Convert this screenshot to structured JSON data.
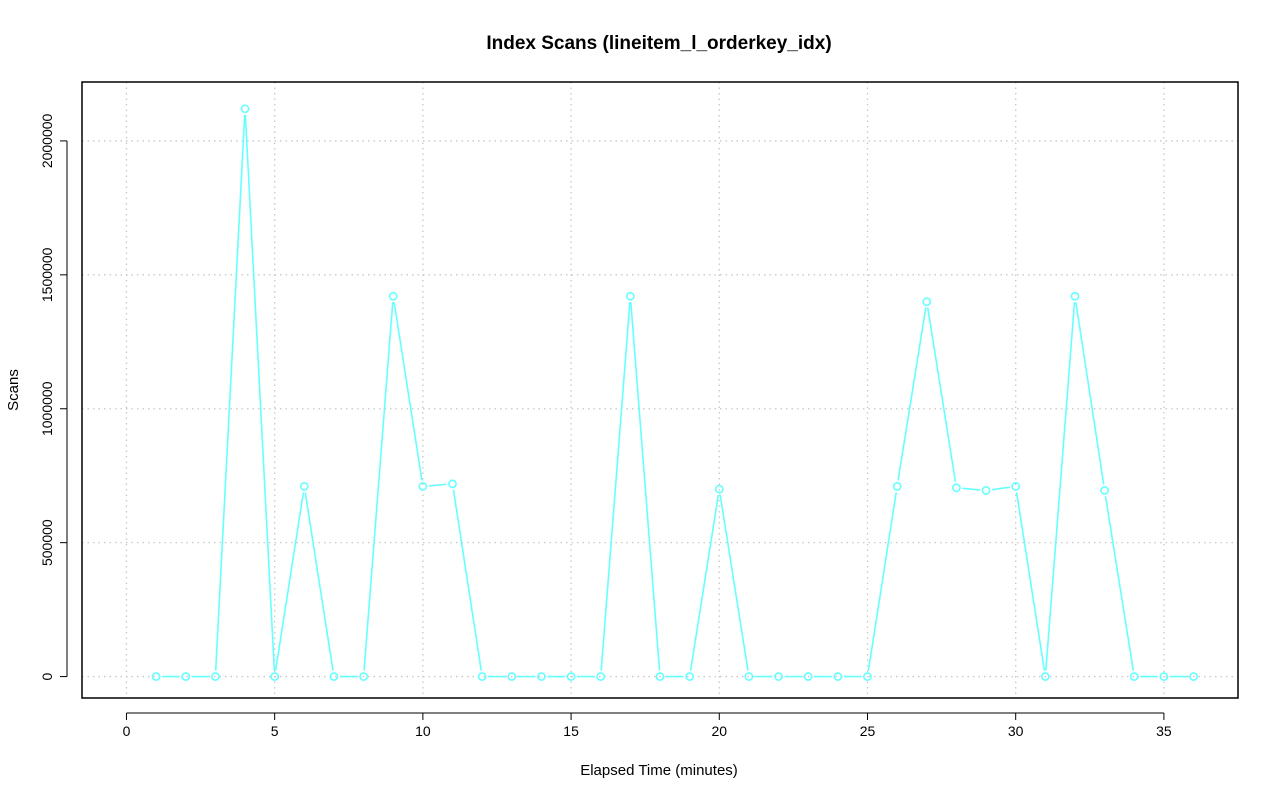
{
  "chart_data": {
    "type": "line",
    "title": "Index Scans (lineitem_l_orderkey_idx)",
    "xlabel": "Elapsed Time (minutes)",
    "ylabel": "Scans",
    "xlim": [
      -1.5,
      37.5
    ],
    "ylim": [
      -80000,
      2220000
    ],
    "x_ticks": [
      0,
      5,
      10,
      15,
      20,
      25,
      30,
      35
    ],
    "y_ticks": [
      0,
      500000,
      1000000,
      1500000,
      2000000
    ],
    "grid": true,
    "markers": "open-circle",
    "colors": {
      "series": "#66ffff",
      "grid": "#c8c8c8",
      "axis": "#000000"
    },
    "series": [
      {
        "x": [
          1,
          2,
          3,
          4,
          5,
          6,
          7,
          8,
          9,
          10,
          11,
          12,
          13,
          14,
          15,
          16,
          17,
          18,
          19,
          20,
          21,
          22,
          23,
          24,
          25,
          26,
          27,
          28,
          29,
          30,
          31,
          32,
          33,
          34,
          35,
          36
        ],
        "values": [
          0,
          0,
          0,
          2120000,
          0,
          710000,
          0,
          0,
          1420000,
          710000,
          720000,
          0,
          0,
          0,
          0,
          0,
          1420000,
          0,
          0,
          700000,
          0,
          0,
          0,
          0,
          0,
          710000,
          1400000,
          705000,
          695000,
          710000,
          0,
          1420000,
          695000,
          0,
          0,
          0
        ]
      }
    ]
  }
}
